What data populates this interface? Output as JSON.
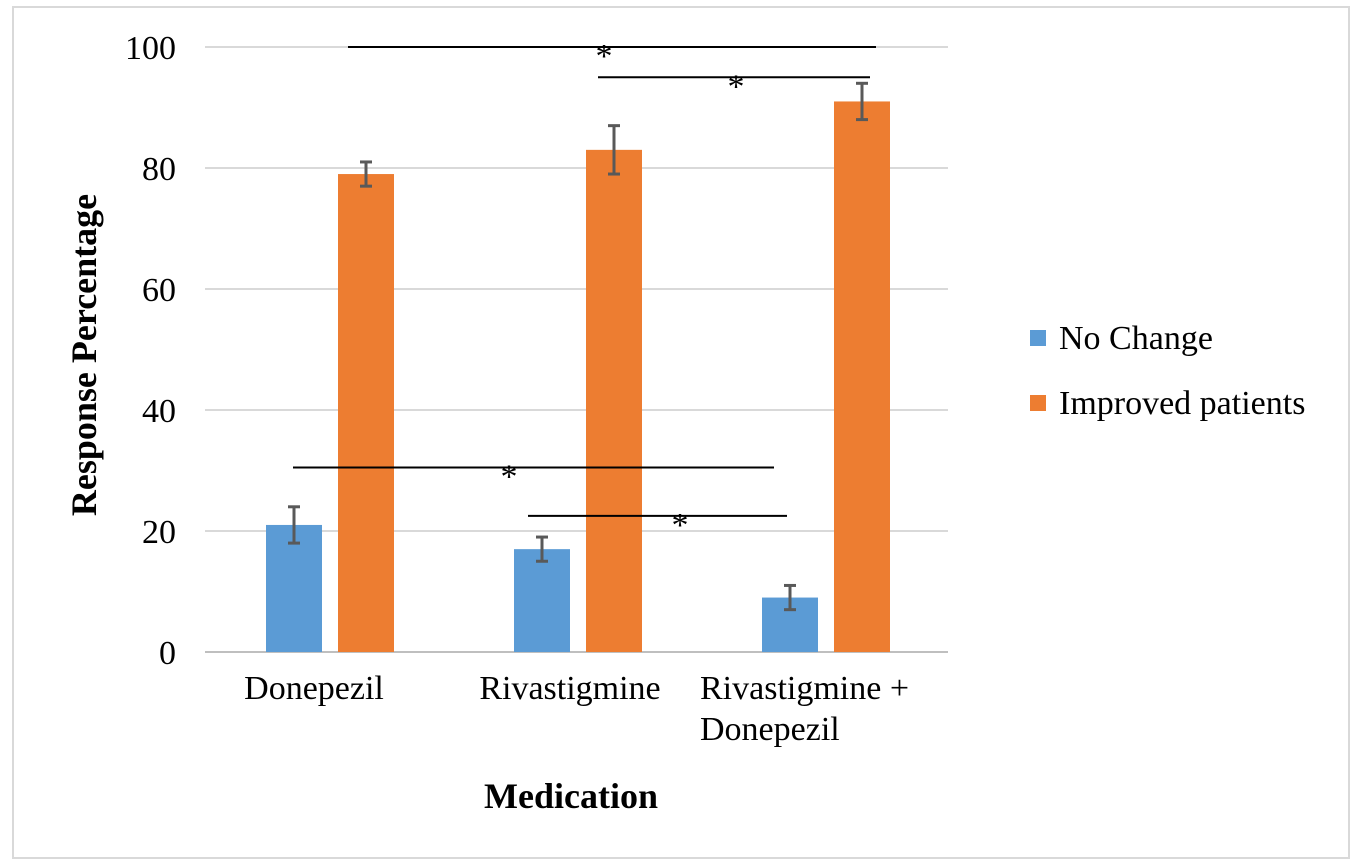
{
  "chart_data": {
    "type": "bar",
    "xlabel": "Medication",
    "ylabel": "Response Percentage",
    "ylim": [
      0,
      100
    ],
    "yticks": [
      0,
      20,
      40,
      60,
      80,
      100
    ],
    "grid": true,
    "legend_position": "right",
    "categories": [
      [
        "Donepezil"
      ],
      [
        "Rivastigmine"
      ],
      [
        "Rivastigmine +",
        "Donepezil"
      ]
    ],
    "series": [
      {
        "name": "No Change",
        "color": "#5b9bd5",
        "values": [
          21,
          17,
          9
        ],
        "error": [
          3,
          2,
          2
        ]
      },
      {
        "name": "Improved patients",
        "color": "#ed7d31",
        "values": [
          79,
          83,
          91
        ],
        "error": [
          2,
          4,
          3
        ]
      }
    ],
    "significance": [
      {
        "label": "*",
        "from_category": 0,
        "to_category": 2,
        "series": "Improved patients",
        "y": 100
      },
      {
        "label": "*",
        "from_category": 1,
        "to_category": 2,
        "series": "Improved patients",
        "y": 95
      },
      {
        "label": "*",
        "from_category": 0,
        "to_category": 2,
        "series": "No Change",
        "y": 30.5
      },
      {
        "label": "*",
        "from_category": 1,
        "to_category": 2,
        "series": "No Change",
        "y": 22.5
      }
    ]
  }
}
